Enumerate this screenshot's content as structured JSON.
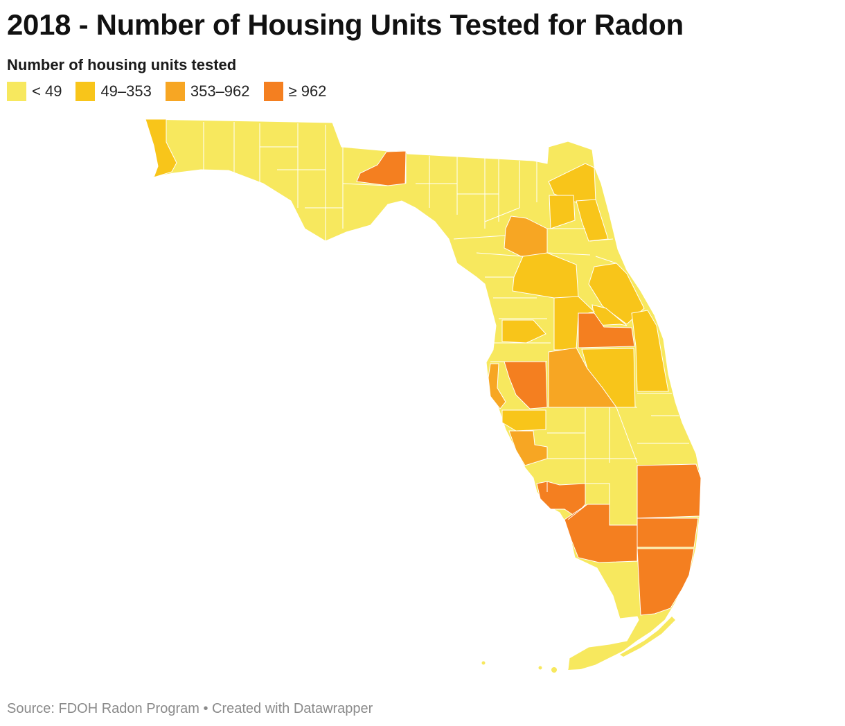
{
  "title": "2018 - Number of Housing Units Tested for Radon",
  "legend": {
    "title": "Number of housing units tested",
    "items": [
      {
        "label": "< 49",
        "color": "#f7e85e"
      },
      {
        "label": "49–353",
        "color": "#f8c51a"
      },
      {
        "label": "353–962",
        "color": "#f7a623"
      },
      {
        "label": "≥ 962",
        "color": "#f47f20"
      }
    ]
  },
  "source": "Source: FDOH Radon Program • Created with Datawrapper"
}
